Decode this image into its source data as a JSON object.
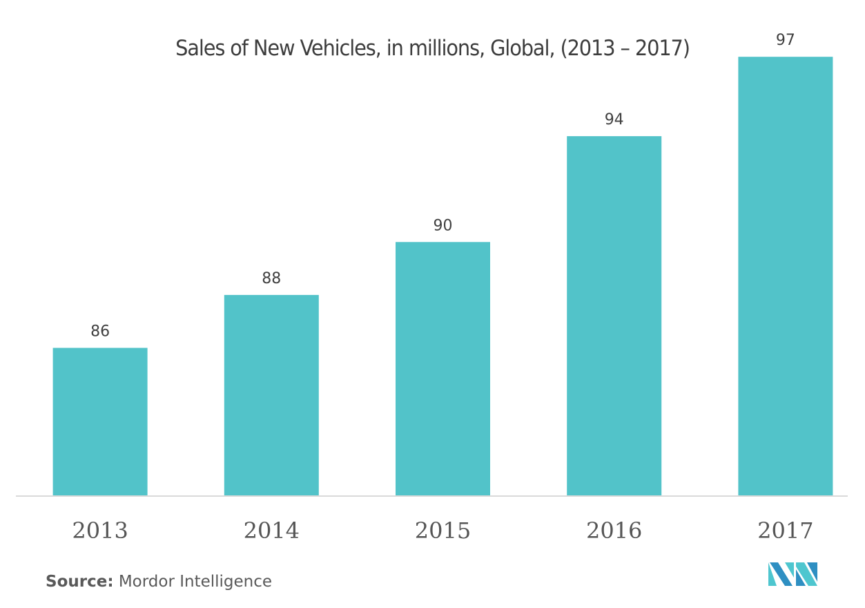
{
  "chart_data": {
    "type": "bar",
    "title": "Sales of New Vehicles, in millions, Global, (2013 – 2017)",
    "categories": [
      "2013",
      "2014",
      "2015",
      "2016",
      "2017"
    ],
    "values": [
      86,
      88,
      90,
      94,
      97
    ],
    "data_labels": [
      "86",
      "88",
      "90",
      "94",
      "97"
    ],
    "xlabel": "",
    "ylabel": "",
    "units": "millions",
    "y_axis_visible": false,
    "grid": false,
    "legend": "none",
    "bar_color": "#52c3c9"
  },
  "source": {
    "label": "Source:",
    "text": "Mordor Intelligence"
  },
  "branding": {
    "logo_icon": "mordor-intelligence-logo-icon",
    "colors": {
      "dark": "#2e8fc2",
      "light": "#4ec6cf"
    }
  },
  "colors": {
    "axis": "#d9d9d9",
    "title_text": "#3d3d3d",
    "label_text": "#404040",
    "tick_text": "#555555"
  }
}
